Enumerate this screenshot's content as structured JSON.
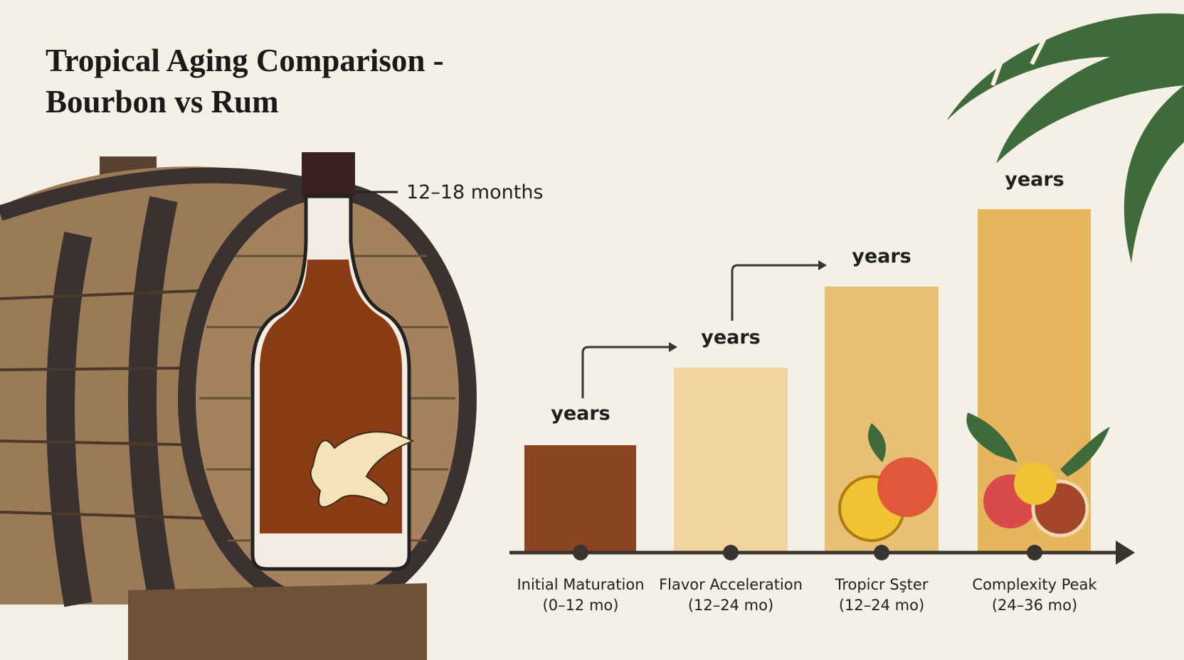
{
  "title": [
    "Tropical Aging Comparison -",
    "Bourbon vs Rum"
  ],
  "callout": "12–18 months",
  "stages": [
    {
      "label": [
        "Initial Maturation",
        "(0–12 mo)"
      ],
      "bar_label": "years"
    },
    {
      "label": [
        "Flavor Acceleration",
        "(12–24 mo)"
      ],
      "bar_label": "years"
    },
    {
      "label": [
        "Tropicr Sşter",
        "(12–24 mo)"
      ],
      "bar_label": "years"
    },
    {
      "label": [
        "Complexity Peak",
        "(24–36 mo)"
      ],
      "bar_label": "years"
    }
  ]
}
